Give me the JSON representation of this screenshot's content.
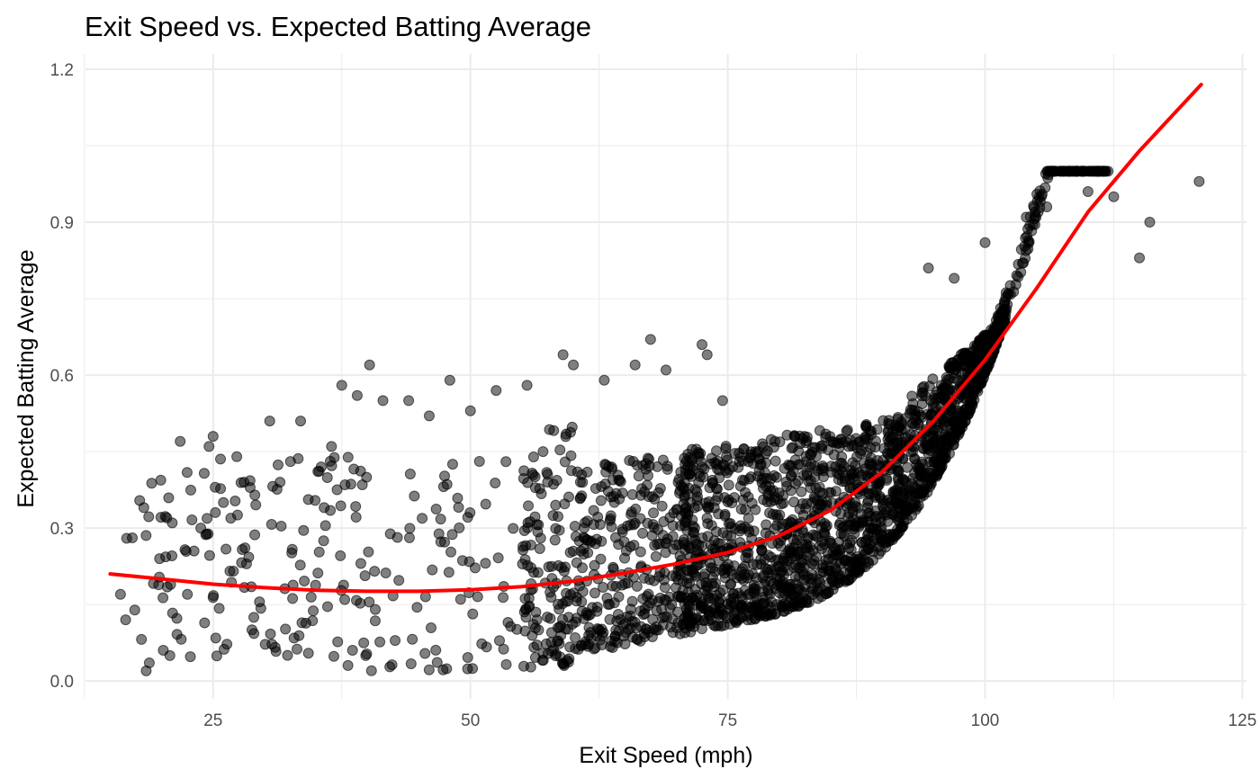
{
  "chart_data": {
    "type": "scatter",
    "title": "Exit Speed vs. Expected Batting Average",
    "xlabel": "Exit Speed (mph)",
    "ylabel": "Expected Batting Average",
    "xlim": [
      12.6,
      125.4
    ],
    "ylim": [
      -0.035,
      1.23
    ],
    "x_ticks": [
      25,
      50,
      75,
      100,
      125
    ],
    "x_tick_labels": [
      "25",
      "50",
      "75",
      "100",
      "125"
    ],
    "y_ticks": [
      0.0,
      0.3,
      0.6,
      0.9,
      1.2
    ],
    "y_tick_labels": [
      "0.0",
      "0.3",
      "0.6",
      "0.9",
      "1.2"
    ],
    "grid": true,
    "legend": "none",
    "colors": {
      "points": "#000000",
      "point_opacity": 0.5,
      "trend": "#ff0000",
      "grid": "#ebebeb"
    },
    "series": [
      {
        "kind": "points",
        "sample_points": [
          [
            16.0,
            0.17
          ],
          [
            16.6,
            0.28
          ],
          [
            16.5,
            0.12
          ],
          [
            18.5,
            0.02
          ],
          [
            19.8,
            0.24
          ],
          [
            20.5,
            0.32
          ],
          [
            20.8,
            0.05
          ],
          [
            21.8,
            0.47
          ],
          [
            22.5,
            0.17
          ],
          [
            23.8,
            0.3
          ],
          [
            24.6,
            0.46
          ],
          [
            25.0,
            0.48
          ],
          [
            25.2,
            0.38
          ],
          [
            26.0,
            0.35
          ],
          [
            27.3,
            0.44
          ],
          [
            28.0,
            0.39
          ],
          [
            30.5,
            0.51
          ],
          [
            31.5,
            0.39
          ],
          [
            33.5,
            0.51
          ],
          [
            35.5,
            0.42
          ],
          [
            36.5,
            0.46
          ],
          [
            37.5,
            0.58
          ],
          [
            39.0,
            0.56
          ],
          [
            40.2,
            0.62
          ],
          [
            41.5,
            0.55
          ],
          [
            44.0,
            0.55
          ],
          [
            46.0,
            0.52
          ],
          [
            48.0,
            0.59
          ],
          [
            50.0,
            0.53
          ],
          [
            52.5,
            0.57
          ],
          [
            55.5,
            0.58
          ],
          [
            59.0,
            0.64
          ],
          [
            60.0,
            0.62
          ],
          [
            63.0,
            0.59
          ],
          [
            66.0,
            0.62
          ],
          [
            67.5,
            0.67
          ],
          [
            69.0,
            0.61
          ],
          [
            72.5,
            0.66
          ],
          [
            73.0,
            0.64
          ],
          [
            74.5,
            0.55
          ],
          [
            94.5,
            0.81
          ],
          [
            97.0,
            0.79
          ],
          [
            100.0,
            0.86
          ],
          [
            104.0,
            0.91
          ],
          [
            106.0,
            0.93
          ],
          [
            110.0,
            0.96
          ],
          [
            112.5,
            0.95
          ],
          [
            115.0,
            0.83
          ],
          [
            116.0,
            0.9
          ],
          [
            120.8,
            0.98
          ]
        ]
      },
      {
        "kind": "trend-line",
        "points": [
          [
            15.0,
            0.21
          ],
          [
            20.0,
            0.2
          ],
          [
            25.0,
            0.19
          ],
          [
            30.0,
            0.183
          ],
          [
            35.0,
            0.178
          ],
          [
            40.0,
            0.176
          ],
          [
            45.0,
            0.176
          ],
          [
            50.0,
            0.179
          ],
          [
            55.0,
            0.185
          ],
          [
            60.0,
            0.196
          ],
          [
            65.0,
            0.212
          ],
          [
            70.0,
            0.23
          ],
          [
            75.0,
            0.252
          ],
          [
            80.0,
            0.285
          ],
          [
            85.0,
            0.335
          ],
          [
            90.0,
            0.41
          ],
          [
            95.0,
            0.51
          ],
          [
            100.0,
            0.63
          ],
          [
            105.0,
            0.77
          ],
          [
            110.0,
            0.92
          ],
          [
            115.0,
            1.04
          ],
          [
            121.0,
            1.17
          ]
        ]
      }
    ]
  }
}
